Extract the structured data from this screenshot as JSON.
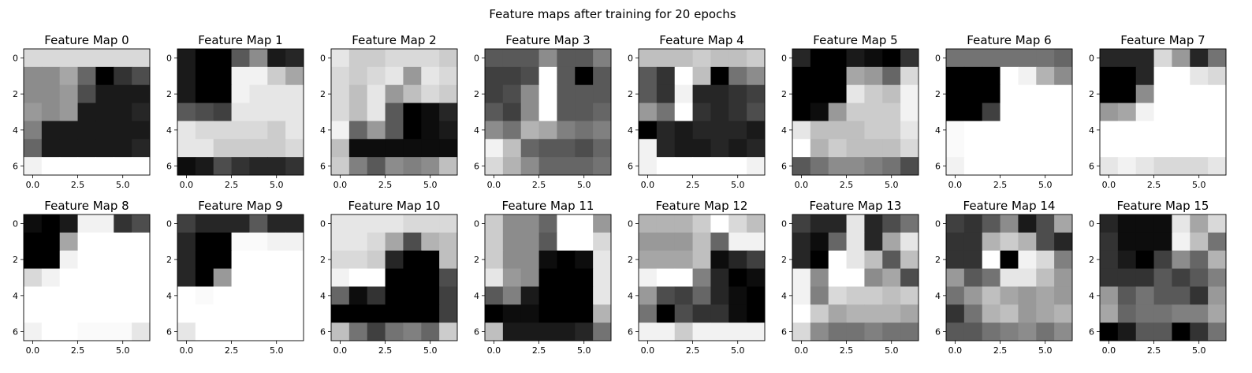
{
  "figure": {
    "title": "Feature maps after training for 20 epochs"
  },
  "chart_data": {
    "type": "heatmap",
    "colormap": "gray",
    "grid": false,
    "xticks": [
      "0.0",
      "2.5",
      "5.0"
    ],
    "yticks": [
      "0",
      "2",
      "4",
      "6"
    ],
    "xlim": [
      -0.5,
      6.5
    ],
    "ylim": [
      6.5,
      -0.5
    ],
    "maps": [
      {
        "title": "Feature Map 0",
        "values": [
          [
            0.85,
            0.85,
            0.85,
            0.85,
            0.85,
            0.85,
            0.85
          ],
          [
            0.55,
            0.55,
            0.65,
            0.4,
            0.0,
            0.2,
            0.3
          ],
          [
            0.55,
            0.55,
            0.6,
            0.3,
            0.1,
            0.1,
            0.1
          ],
          [
            0.6,
            0.55,
            0.6,
            0.1,
            0.1,
            0.1,
            0.15
          ],
          [
            0.5,
            0.1,
            0.1,
            0.1,
            0.1,
            0.1,
            0.1
          ],
          [
            0.4,
            0.1,
            0.1,
            0.1,
            0.1,
            0.1,
            0.15
          ],
          [
            0.95,
            1.0,
            1.0,
            1.0,
            1.0,
            1.0,
            1.0
          ]
        ]
      },
      {
        "title": "Feature Map 1",
        "values": [
          [
            0.1,
            0.0,
            0.0,
            0.35,
            0.55,
            0.1,
            0.15
          ],
          [
            0.1,
            0.0,
            0.0,
            0.95,
            0.95,
            0.8,
            0.65
          ],
          [
            0.1,
            0.0,
            0.0,
            0.95,
            0.9,
            0.9,
            0.9
          ],
          [
            0.35,
            0.3,
            0.25,
            0.9,
            0.9,
            0.9,
            0.9
          ],
          [
            0.9,
            0.85,
            0.85,
            0.85,
            0.85,
            0.8,
            0.9
          ],
          [
            0.9,
            0.9,
            0.8,
            0.8,
            0.8,
            0.8,
            0.85
          ],
          [
            0.05,
            0.1,
            0.3,
            0.2,
            0.15,
            0.15,
            0.2
          ]
        ]
      },
      {
        "title": "Feature Map 2",
        "values": [
          [
            0.9,
            0.8,
            0.8,
            0.85,
            0.85,
            0.85,
            0.8
          ],
          [
            0.85,
            0.8,
            0.85,
            0.9,
            0.6,
            0.9,
            0.85
          ],
          [
            0.85,
            0.75,
            0.9,
            0.6,
            0.75,
            0.85,
            0.8
          ],
          [
            0.85,
            0.75,
            0.9,
            0.35,
            0.0,
            0.05,
            0.15
          ],
          [
            0.95,
            0.4,
            0.6,
            0.35,
            0.0,
            0.05,
            0.1
          ],
          [
            0.75,
            0.05,
            0.05,
            0.05,
            0.05,
            0.05,
            0.05
          ],
          [
            0.8,
            0.5,
            0.35,
            0.55,
            0.5,
            0.55,
            0.75
          ]
        ]
      },
      {
        "title": "Feature Map 3",
        "values": [
          [
            0.35,
            0.35,
            0.35,
            0.55,
            0.35,
            0.35,
            0.5
          ],
          [
            0.25,
            0.25,
            0.3,
            1.0,
            0.35,
            0.0,
            0.35
          ],
          [
            0.25,
            0.3,
            0.55,
            1.0,
            0.35,
            0.35,
            0.35
          ],
          [
            0.35,
            0.25,
            0.55,
            1.0,
            0.35,
            0.35,
            0.4
          ],
          [
            0.55,
            0.45,
            0.7,
            0.65,
            0.5,
            0.45,
            0.5
          ],
          [
            0.95,
            0.75,
            0.4,
            0.35,
            0.35,
            0.3,
            0.4
          ],
          [
            0.85,
            0.7,
            0.55,
            0.4,
            0.4,
            0.4,
            0.45
          ]
        ]
      },
      {
        "title": "Feature Map 4",
        "values": [
          [
            0.75,
            0.75,
            0.75,
            0.8,
            0.75,
            0.75,
            0.8
          ],
          [
            0.35,
            0.2,
            1.0,
            0.75,
            0.0,
            0.45,
            0.55
          ],
          [
            0.35,
            0.2,
            0.95,
            0.15,
            0.15,
            0.2,
            0.25
          ],
          [
            0.6,
            0.45,
            1.0,
            0.2,
            0.15,
            0.2,
            0.3
          ],
          [
            0.0,
            0.15,
            0.1,
            0.15,
            0.15,
            0.15,
            0.1
          ],
          [
            0.95,
            0.15,
            0.1,
            0.1,
            0.15,
            0.1,
            0.15
          ],
          [
            0.95,
            1.0,
            1.0,
            1.0,
            1.0,
            1.0,
            0.95
          ]
        ]
      },
      {
        "title": "Feature Map 5",
        "values": [
          [
            0.15,
            0.0,
            0.0,
            0.1,
            0.05,
            0.0,
            0.2
          ],
          [
            0.0,
            0.0,
            0.0,
            0.65,
            0.6,
            0.4,
            0.85
          ],
          [
            0.0,
            0.0,
            0.0,
            0.9,
            0.8,
            0.75,
            0.95
          ],
          [
            0.0,
            0.05,
            0.6,
            0.8,
            0.8,
            0.8,
            0.95
          ],
          [
            0.9,
            0.75,
            0.75,
            0.75,
            0.8,
            0.8,
            0.9
          ],
          [
            1.0,
            0.7,
            0.8,
            0.75,
            0.75,
            0.75,
            0.85
          ],
          [
            0.35,
            0.45,
            0.55,
            0.55,
            0.5,
            0.45,
            0.3
          ]
        ]
      },
      {
        "title": "Feature Map 6",
        "values": [
          [
            0.45,
            0.45,
            0.45,
            0.45,
            0.45,
            0.45,
            0.4
          ],
          [
            0.0,
            0.0,
            0.0,
            1.0,
            0.95,
            0.7,
            0.55
          ],
          [
            0.0,
            0.0,
            0.0,
            1.0,
            1.0,
            1.0,
            1.0
          ],
          [
            0.0,
            0.0,
            0.25,
            1.0,
            1.0,
            1.0,
            1.0
          ],
          [
            0.98,
            1.0,
            1.0,
            1.0,
            1.0,
            1.0,
            1.0
          ],
          [
            0.98,
            1.0,
            1.0,
            1.0,
            1.0,
            1.0,
            1.0
          ],
          [
            0.95,
            1.0,
            1.0,
            1.0,
            1.0,
            1.0,
            1.0
          ]
        ]
      },
      {
        "title": "Feature Map 7",
        "values": [
          [
            0.15,
            0.15,
            0.15,
            0.85,
            0.6,
            0.15,
            0.45
          ],
          [
            0.0,
            0.0,
            0.15,
            1.0,
            1.0,
            0.9,
            0.85
          ],
          [
            0.0,
            0.0,
            0.55,
            1.0,
            1.0,
            1.0,
            1.0
          ],
          [
            0.6,
            0.65,
            0.95,
            1.0,
            1.0,
            1.0,
            1.0
          ],
          [
            1.0,
            1.0,
            1.0,
            1.0,
            1.0,
            1.0,
            1.0
          ],
          [
            1.0,
            1.0,
            1.0,
            1.0,
            1.0,
            1.0,
            1.0
          ],
          [
            0.9,
            0.95,
            0.9,
            0.85,
            0.85,
            0.85,
            0.9
          ]
        ]
      },
      {
        "title": "Feature Map 8",
        "values": [
          [
            0.05,
            0.0,
            0.1,
            0.95,
            0.95,
            0.2,
            0.3
          ],
          [
            0.0,
            0.0,
            0.65,
            1.0,
            1.0,
            1.0,
            1.0
          ],
          [
            0.0,
            0.0,
            0.95,
            1.0,
            1.0,
            1.0,
            1.0
          ],
          [
            0.85,
            0.95,
            1.0,
            1.0,
            1.0,
            1.0,
            1.0
          ],
          [
            1.0,
            1.0,
            1.0,
            1.0,
            1.0,
            1.0,
            1.0
          ],
          [
            1.0,
            1.0,
            1.0,
            1.0,
            1.0,
            1.0,
            1.0
          ],
          [
            0.95,
            1.0,
            1.0,
            0.98,
            0.98,
            0.98,
            0.9
          ]
        ]
      },
      {
        "title": "Feature Map 9",
        "values": [
          [
            0.25,
            0.15,
            0.15,
            0.15,
            0.35,
            0.15,
            0.15
          ],
          [
            0.15,
            0.0,
            0.0,
            0.98,
            0.98,
            0.95,
            0.95
          ],
          [
            0.15,
            0.0,
            0.0,
            1.0,
            1.0,
            1.0,
            1.0
          ],
          [
            0.15,
            0.0,
            0.6,
            1.0,
            1.0,
            1.0,
            1.0
          ],
          [
            1.0,
            0.98,
            1.0,
            1.0,
            1.0,
            1.0,
            1.0
          ],
          [
            1.0,
            1.0,
            1.0,
            1.0,
            1.0,
            1.0,
            1.0
          ],
          [
            0.9,
            1.0,
            1.0,
            1.0,
            1.0,
            1.0,
            1.0
          ]
        ]
      },
      {
        "title": "Feature Map 10",
        "values": [
          [
            0.9,
            0.9,
            0.9,
            0.9,
            0.85,
            0.85,
            0.85
          ],
          [
            0.9,
            0.9,
            0.85,
            0.65,
            0.3,
            0.7,
            0.75
          ],
          [
            0.85,
            0.85,
            0.8,
            0.15,
            0.0,
            0.0,
            0.75
          ],
          [
            0.95,
            1.0,
            1.0,
            0.0,
            0.0,
            0.0,
            0.3
          ],
          [
            0.4,
            0.05,
            0.2,
            0.0,
            0.0,
            0.0,
            0.25
          ],
          [
            0.0,
            0.0,
            0.0,
            0.0,
            0.0,
            0.0,
            0.25
          ],
          [
            0.75,
            0.45,
            0.25,
            0.45,
            0.5,
            0.4,
            0.8
          ]
        ]
      },
      {
        "title": "Feature Map 11",
        "values": [
          [
            0.8,
            0.55,
            0.55,
            0.4,
            1.0,
            1.0,
            0.6
          ],
          [
            0.8,
            0.55,
            0.55,
            0.35,
            1.0,
            1.0,
            0.85
          ],
          [
            0.8,
            0.55,
            0.55,
            0.05,
            0.0,
            0.05,
            0.9
          ],
          [
            0.9,
            0.6,
            0.55,
            0.0,
            0.0,
            0.0,
            0.9
          ],
          [
            0.35,
            0.5,
            0.1,
            0.0,
            0.0,
            0.0,
            0.9
          ],
          [
            0.0,
            0.05,
            0.05,
            0.0,
            0.0,
            0.0,
            0.7
          ],
          [
            0.75,
            0.1,
            0.1,
            0.1,
            0.1,
            0.15,
            0.45
          ]
        ]
      },
      {
        "title": "Feature Map 12",
        "values": [
          [
            0.7,
            0.7,
            0.7,
            0.8,
            1.0,
            0.85,
            0.75
          ],
          [
            0.6,
            0.6,
            0.6,
            0.75,
            0.4,
            0.95,
            0.95
          ],
          [
            0.65,
            0.65,
            0.65,
            0.75,
            0.05,
            0.15,
            0.25
          ],
          [
            0.95,
            1.0,
            1.0,
            0.5,
            0.15,
            0.0,
            0.05
          ],
          [
            0.6,
            0.3,
            0.25,
            0.4,
            0.15,
            0.05,
            0.0
          ],
          [
            0.45,
            0.0,
            0.3,
            0.2,
            0.2,
            0.05,
            0.0
          ],
          [
            0.95,
            0.95,
            0.8,
            0.95,
            0.95,
            0.95,
            0.95
          ]
        ]
      },
      {
        "title": "Feature Map 13",
        "values": [
          [
            0.25,
            0.15,
            0.15,
            0.9,
            0.15,
            0.3,
            0.45
          ],
          [
            0.15,
            0.05,
            0.4,
            0.9,
            0.15,
            0.65,
            0.9
          ],
          [
            0.15,
            0.0,
            1.0,
            0.9,
            0.75,
            0.35,
            0.75
          ],
          [
            0.95,
            0.55,
            1.0,
            1.0,
            0.55,
            0.65,
            0.3
          ],
          [
            0.95,
            0.5,
            0.85,
            0.8,
            0.8,
            0.75,
            0.8
          ],
          [
            1.0,
            0.8,
            0.65,
            0.7,
            0.7,
            0.7,
            0.65
          ],
          [
            0.85,
            0.55,
            0.45,
            0.45,
            0.5,
            0.45,
            0.45
          ]
        ]
      },
      {
        "title": "Feature Map 14",
        "values": [
          [
            0.25,
            0.2,
            0.35,
            0.55,
            0.1,
            0.3,
            0.65
          ],
          [
            0.2,
            0.2,
            0.7,
            0.8,
            0.7,
            0.3,
            0.15
          ],
          [
            0.2,
            0.2,
            1.0,
            0.0,
            0.95,
            0.85,
            0.5
          ],
          [
            0.6,
            0.35,
            0.45,
            0.9,
            0.9,
            0.75,
            0.6
          ],
          [
            0.45,
            0.6,
            0.75,
            0.65,
            0.6,
            0.65,
            0.6
          ],
          [
            0.2,
            0.45,
            0.7,
            0.75,
            0.6,
            0.65,
            0.7
          ],
          [
            0.35,
            0.35,
            0.45,
            0.5,
            0.55,
            0.45,
            0.55
          ]
        ]
      },
      {
        "title": "Feature Map 15",
        "values": [
          [
            0.15,
            0.05,
            0.05,
            0.05,
            0.9,
            0.65,
            0.85
          ],
          [
            0.2,
            0.05,
            0.05,
            0.05,
            0.95,
            0.75,
            0.45
          ],
          [
            0.2,
            0.1,
            0.0,
            0.25,
            0.55,
            0.4,
            0.7
          ],
          [
            0.2,
            0.2,
            0.2,
            0.35,
            0.25,
            0.35,
            0.5
          ],
          [
            0.6,
            0.35,
            0.45,
            0.35,
            0.35,
            0.2,
            0.6
          ],
          [
            0.65,
            0.4,
            0.45,
            0.45,
            0.5,
            0.5,
            0.65
          ],
          [
            0.0,
            0.1,
            0.35,
            0.35,
            0.0,
            0.2,
            0.45
          ]
        ]
      }
    ]
  }
}
